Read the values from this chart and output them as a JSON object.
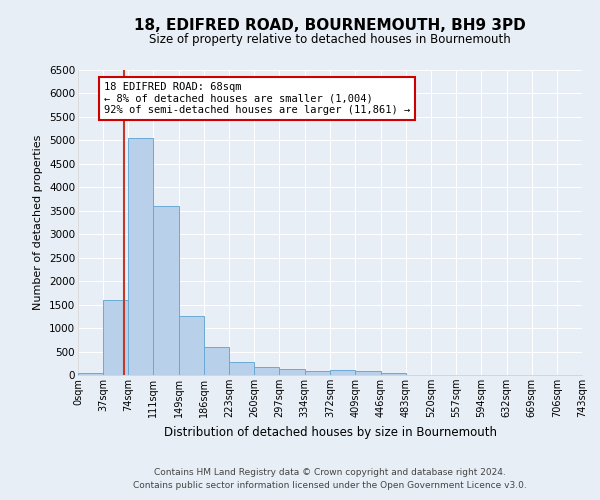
{
  "title": "18, EDIFRED ROAD, BOURNEMOUTH, BH9 3PD",
  "subtitle": "Size of property relative to detached houses in Bournemouth",
  "xlabel": "Distribution of detached houses by size in Bournemouth",
  "ylabel": "Number of detached properties",
  "footnote1": "Contains HM Land Registry data © Crown copyright and database right 2024.",
  "footnote2": "Contains public sector information licensed under the Open Government Licence v3.0.",
  "annotation_title": "18 EDIFRED ROAD: 68sqm",
  "annotation_line1": "← 8% of detached houses are smaller (1,004)",
  "annotation_line2": "92% of semi-detached houses are larger (11,861) →",
  "bar_color": "#b8d0ea",
  "bar_edge_color": "#6aaad4",
  "property_line_color": "#c0392b",
  "property_size_sqm": 68,
  "bin_edges": [
    0,
    37,
    74,
    111,
    149,
    186,
    223,
    260,
    297,
    334,
    372,
    409,
    446,
    483,
    520,
    557,
    594,
    632,
    669,
    706,
    743
  ],
  "bar_heights": [
    50,
    1600,
    5050,
    3600,
    1250,
    600,
    280,
    170,
    130,
    90,
    110,
    75,
    50,
    0,
    0,
    0,
    0,
    0,
    0,
    0
  ],
  "ylim": [
    0,
    6500
  ],
  "yticks": [
    0,
    500,
    1000,
    1500,
    2000,
    2500,
    3000,
    3500,
    4000,
    4500,
    5000,
    5500,
    6000,
    6500
  ],
  "background_color": "#e8eef6",
  "plot_bg_color": "#e8eef6",
  "annotation_box_facecolor": "#ffffff",
  "annotation_box_edgecolor": "#cc0000",
  "grid_color": "#ffffff"
}
